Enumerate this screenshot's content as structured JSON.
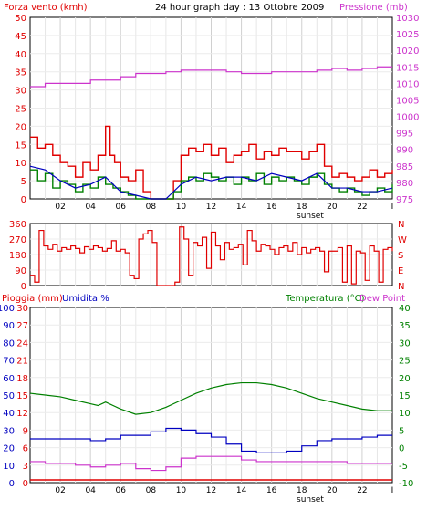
{
  "title": "24 hour graph day : 13 Ottobre 2009",
  "colors": {
    "wind": "#e00000",
    "gust": "#e00000",
    "avg_wind": "#008000",
    "dir": "#e00000",
    "pressure": "#cc33cc",
    "rain": "#e00000",
    "humidity": "#0000c0",
    "temp": "#008000",
    "dew": "#cc33cc",
    "grid": "#d0d0d0",
    "frame": "#000000"
  },
  "x_ticks": [
    "02",
    "04",
    "06",
    "08",
    "10",
    "12",
    "14",
    "16",
    "18",
    "20",
    "22",
    "I"
  ],
  "sunset_label": "sunset",
  "chart_data": [
    {
      "type": "line",
      "title": "24 hour graph day : 13 Ottobre 2009",
      "ylabel_left": "Forza vento (kmh)",
      "ylabel_right": "Pressione (mb)",
      "ylim_left": [
        0,
        50
      ],
      "ylim_right": [
        975,
        1030
      ],
      "yticks_left": [
        "0",
        "5",
        "10",
        "15",
        "20",
        "25",
        "30",
        "35",
        "40",
        "45",
        "50"
      ],
      "yticks_right": [
        "975",
        "980",
        "985",
        "990",
        "995",
        "1000",
        "1005",
        "1010",
        "1015",
        "1020",
        "1025",
        "1030"
      ],
      "xlim": [
        0,
        24
      ],
      "series": [
        {
          "role": "gust",
          "x": [
            0,
            0.5,
            1,
            1.5,
            2,
            2.5,
            3,
            3.5,
            4,
            4.5,
            5,
            5.3,
            5.6,
            6,
            6.5,
            7,
            7.5,
            8,
            8.5,
            9,
            9.5,
            10,
            10.5,
            11,
            11.5,
            12,
            12.5,
            13,
            13.5,
            14,
            14.5,
            15,
            15.5,
            16,
            16.5,
            17,
            17.5,
            18,
            18.5,
            19,
            19.5,
            20,
            20.5,
            21,
            21.5,
            22,
            22.5,
            23,
            23.5,
            24
          ],
          "y": [
            17,
            14,
            15,
            12,
            10,
            9,
            6,
            10,
            8,
            12,
            20,
            12,
            10,
            6,
            5,
            8,
            2,
            0,
            0,
            0,
            5,
            12,
            14,
            13,
            15,
            12,
            14,
            10,
            12,
            13,
            15,
            11,
            13,
            12,
            14,
            13,
            13,
            11,
            13,
            15,
            9,
            6,
            7,
            6,
            5,
            6,
            8,
            6,
            7,
            8
          ]
        },
        {
          "role": "avg",
          "x": [
            0,
            0.5,
            1,
            1.5,
            2,
            2.5,
            3,
            3.5,
            4,
            4.5,
            5,
            5.5,
            6,
            6.5,
            7,
            7.5,
            8,
            8.5,
            9,
            9.5,
            10,
            10.5,
            11,
            11.5,
            12,
            12.5,
            13,
            13.5,
            14,
            14.5,
            15,
            15.5,
            16,
            16.5,
            17,
            17.5,
            18,
            18.5,
            19,
            19.5,
            20,
            20.5,
            21,
            21.5,
            22,
            22.5,
            23,
            23.5,
            24
          ],
          "y": [
            8,
            5,
            7,
            3,
            5,
            4,
            2,
            4,
            3,
            6,
            4,
            3,
            2,
            1,
            0,
            0,
            0,
            0,
            0,
            2,
            5,
            6,
            5,
            7,
            6,
            5,
            6,
            4,
            6,
            5,
            7,
            4,
            6,
            5,
            6,
            5,
            4,
            6,
            7,
            4,
            3,
            2,
            3,
            2,
            1,
            2,
            3,
            2,
            4
          ]
        },
        {
          "role": "mean",
          "x": [
            0,
            1,
            2,
            3,
            4,
            5,
            6,
            7,
            8,
            9,
            10,
            11,
            12,
            13,
            14,
            15,
            16,
            17,
            18,
            19,
            20,
            21,
            22,
            23,
            24
          ],
          "y": [
            9,
            8,
            5,
            3,
            4,
            6,
            2,
            1,
            0,
            0,
            4,
            6,
            5,
            6,
            6,
            5,
            7,
            6,
            5,
            7,
            3,
            3,
            2,
            2,
            3
          ]
        },
        {
          "role": "pressure",
          "x": [
            0,
            0.6,
            1,
            2,
            3,
            4,
            5,
            6,
            7,
            8,
            9,
            10,
            11,
            12,
            13,
            14,
            15,
            16,
            17,
            18,
            19,
            20,
            21,
            22,
            23,
            24
          ],
          "y": [
            1009,
            1009,
            1010,
            1010,
            1010,
            1011,
            1011,
            1012,
            1013,
            1013,
            1013.5,
            1014,
            1014,
            1014,
            1013.5,
            1013,
            1013,
            1013.5,
            1013.5,
            1013.5,
            1014,
            1014.5,
            1014,
            1014.5,
            1015,
            1015
          ]
        }
      ]
    },
    {
      "type": "line",
      "ylim": [
        0,
        360
      ],
      "yticks_left": [
        "0",
        "90",
        "180",
        "270",
        "360"
      ],
      "yticks_right": [
        "N",
        "E",
        "S",
        "W",
        "N"
      ],
      "xlim": [
        0,
        24
      ],
      "series": [
        {
          "role": "direction",
          "x": [
            0,
            0.3,
            0.6,
            0.9,
            1.2,
            1.5,
            1.8,
            2.1,
            2.4,
            2.7,
            3,
            3.3,
            3.6,
            3.9,
            4.2,
            4.5,
            4.8,
            5.1,
            5.4,
            5.7,
            6,
            6.3,
            6.6,
            6.9,
            7.2,
            7.5,
            7.8,
            8.1,
            8.4,
            8.7,
            9,
            9.3,
            9.6,
            9.9,
            10.2,
            10.5,
            10.8,
            11.1,
            11.4,
            11.7,
            12,
            12.3,
            12.6,
            12.9,
            13.2,
            13.5,
            13.8,
            14.1,
            14.4,
            14.7,
            15,
            15.3,
            15.6,
            15.9,
            16.2,
            16.5,
            16.8,
            17.1,
            17.4,
            17.7,
            18,
            18.3,
            18.6,
            18.9,
            19.2,
            19.5,
            19.8,
            20.1,
            20.4,
            20.7,
            21,
            21.3,
            21.6,
            21.9,
            22.2,
            22.5,
            22.8,
            23.1,
            23.4,
            23.7,
            24
          ],
          "y": [
            60,
            20,
            320,
            230,
            210,
            240,
            200,
            220,
            210,
            230,
            215,
            190,
            225,
            210,
            230,
            220,
            200,
            215,
            260,
            200,
            210,
            190,
            60,
            40,
            270,
            300,
            320,
            250,
            0,
            0,
            0,
            0,
            20,
            340,
            270,
            60,
            250,
            230,
            280,
            100,
            310,
            230,
            150,
            250,
            210,
            220,
            240,
            120,
            320,
            260,
            200,
            240,
            230,
            210,
            180,
            220,
            230,
            200,
            250,
            180,
            220,
            190,
            210,
            220,
            200,
            80,
            200,
            200,
            220,
            20,
            230,
            10,
            200,
            190,
            30,
            230,
            200,
            20,
            210,
            220,
            200
          ]
        }
      ]
    },
    {
      "type": "line",
      "ylabel_rain": "Pioggia (mm)",
      "ylabel_hum": "Umidita %",
      "ylabel_temp": "Temperatura (°C)",
      "ylabel_dew": "Dew Point",
      "ylim_rain": [
        0,
        30
      ],
      "ylim_hum": [
        0,
        100
      ],
      "ylim_temp": [
        -10,
        40
      ],
      "yticks_rain": [
        "0",
        "3",
        "6",
        "9",
        "12",
        "15",
        "18",
        "21",
        "24",
        "27",
        "30"
      ],
      "yticks_hum": [
        "0",
        "10",
        "20",
        "30",
        "40",
        "50",
        "60",
        "70",
        "80",
        "90",
        "100"
      ],
      "yticks_temp": [
        "-10",
        "-5",
        "0",
        "5",
        "10",
        "15",
        "20",
        "25",
        "30",
        "35",
        "40"
      ],
      "xlim": [
        0,
        24
      ],
      "series": [
        {
          "role": "temp",
          "x": [
            0,
            1,
            2,
            3,
            4,
            4.5,
            5,
            6,
            7,
            8,
            9,
            10,
            11,
            12,
            13,
            14,
            15,
            16,
            17,
            18,
            19,
            20,
            21,
            22,
            23,
            24
          ],
          "y": [
            15.5,
            15,
            14.5,
            13.5,
            12.5,
            12,
            13,
            11,
            9.5,
            10,
            11.5,
            13.5,
            15.5,
            17,
            18,
            18.5,
            18.5,
            18,
            17,
            15.5,
            14,
            13,
            12,
            11,
            10.5,
            10.5
          ]
        },
        {
          "role": "humidity",
          "x": [
            0,
            1,
            2,
            3,
            4,
            5,
            6,
            7,
            8,
            9,
            10,
            11,
            12,
            13,
            14,
            15,
            16,
            17,
            18,
            19,
            20,
            21,
            22,
            23,
            24
          ],
          "y": [
            25,
            25,
            25,
            25,
            24,
            25,
            27,
            27,
            29,
            31,
            30,
            28,
            26,
            22,
            18,
            17,
            17,
            18,
            21,
            24,
            25,
            25,
            26,
            27,
            27
          ]
        },
        {
          "role": "dew",
          "x": [
            0,
            1,
            2,
            3,
            4,
            5,
            6,
            7,
            8,
            9,
            10,
            11,
            12,
            13,
            14,
            15,
            16,
            17,
            18,
            19,
            20,
            21,
            22,
            23,
            24
          ],
          "y": [
            -4,
            -4.5,
            -4.5,
            -5,
            -5.5,
            -5,
            -4.5,
            -6,
            -6.5,
            -5.5,
            -3,
            -2.5,
            -2.5,
            -2.5,
            -3.5,
            -4,
            -4,
            -4,
            -4,
            -4,
            -4,
            -4.5,
            -4.5,
            -4.5,
            -4.5
          ]
        },
        {
          "role": "rain",
          "x": [
            0,
            24
          ],
          "y": [
            0,
            0
          ]
        }
      ]
    }
  ]
}
